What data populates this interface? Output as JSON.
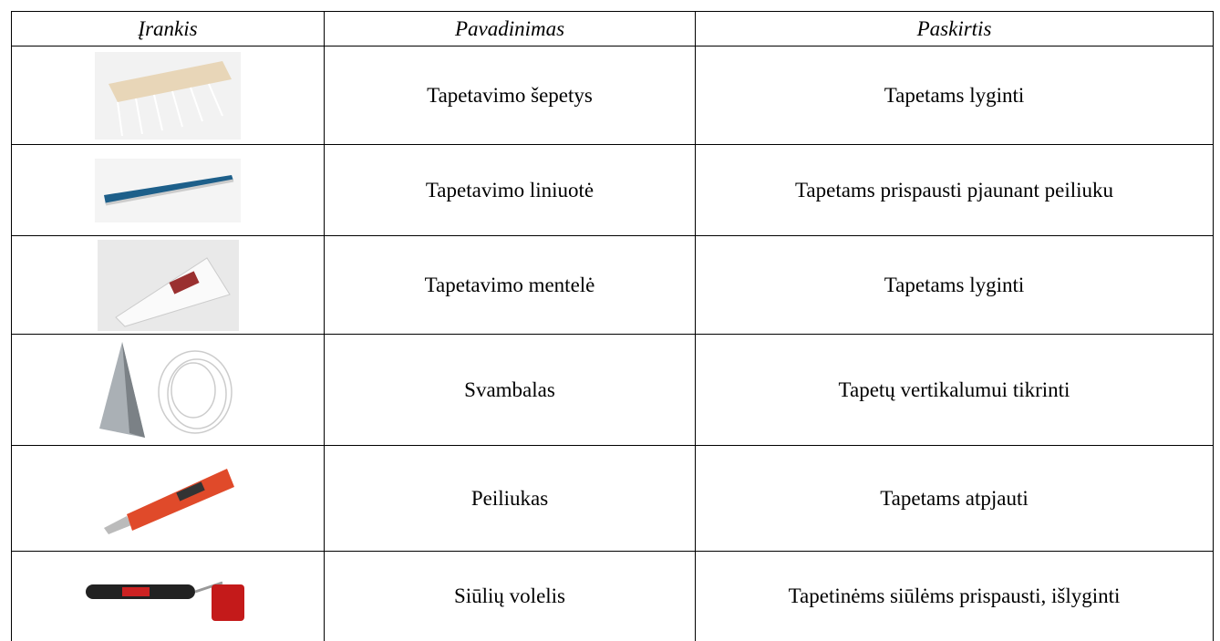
{
  "table": {
    "header": [
      "Įrankis",
      "Pavadinimas",
      "Paskirtis"
    ],
    "rows": [
      [
        "Tapetavimo šepetys",
        "Tapetams lyginti"
      ],
      [
        "Tapetavimo liniuotė",
        "Tapetams prispausti pjaunant peiliuku"
      ],
      [
        "Tapetavimo mentelė",
        "Tapetams lyginti"
      ],
      [
        "Svambalas",
        "Tapetų vertikalumui tikrinti"
      ],
      [
        "Peiliukas",
        "Tapetams atpjauti"
      ],
      [
        "Siūlių volelis",
        "Tapetinėms siūlėms prispausti, išlyginti"
      ]
    ]
  }
}
